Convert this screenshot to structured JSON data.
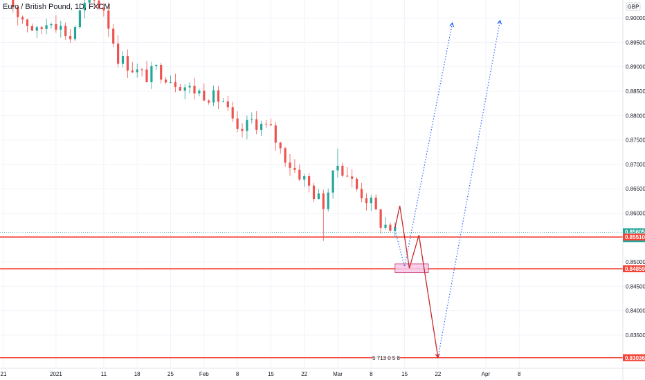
{
  "header": {
    "symbol_title": "Euro / British Pound, 1D, FXCM",
    "currency": "GBP"
  },
  "colors": {
    "up": "#26a69a",
    "down": "#ef5350",
    "level_line": "#f44336",
    "projection_solid": "#c62828",
    "projection_dotted": "#2962ff",
    "zone_fill": "#f8c8e8",
    "zone_border": "#c2185b",
    "last_price_bg": "#26a69a",
    "grid": "#f0f3fa"
  },
  "chart_data": {
    "type": "candlestick",
    "title": "Euro / British Pound, 1D, FXCM",
    "ylim": [
      0.8282,
      0.9037
    ],
    "y_ticks": [
      0.9,
      0.895,
      0.89,
      0.885,
      0.88,
      0.875,
      0.87,
      0.865,
      0.86,
      0.85,
      0.845,
      0.84,
      0.835
    ],
    "y_tick_labels": [
      "0.90000",
      "0.89500",
      "0.89000",
      "0.88500",
      "0.88000",
      "0.87500",
      "0.87000",
      "0.86500",
      "0.86000",
      "0.85000",
      "0.84500",
      "0.84000",
      "0.83500"
    ],
    "x_range": [
      "2020-12-21",
      "2021-04-15"
    ],
    "x_ticks": [
      {
        "date": "2020-12-21",
        "label": "21"
      },
      {
        "date": "2021-01-01",
        "label": "2021"
      },
      {
        "date": "2021-01-11",
        "label": "11"
      },
      {
        "date": "2021-01-18",
        "label": "18"
      },
      {
        "date": "2021-01-25",
        "label": "25"
      },
      {
        "date": "2021-02-01",
        "label": "Feb"
      },
      {
        "date": "2021-02-08",
        "label": "8"
      },
      {
        "date": "2021-02-15",
        "label": "15"
      },
      {
        "date": "2021-02-22",
        "label": "22"
      },
      {
        "date": "2021-03-01",
        "label": "Mar"
      },
      {
        "date": "2021-03-08",
        "label": "8"
      },
      {
        "date": "2021-03-15",
        "label": "15"
      },
      {
        "date": "2021-03-22",
        "label": "22"
      },
      {
        "date": "2021-04-01",
        "label": "Apr"
      },
      {
        "date": "2021-04-08",
        "label": "8"
      }
    ],
    "price_anchors": [
      [
        "2020-12-21",
        0.906
      ],
      [
        "2020-12-24",
        0.901
      ],
      [
        "2020-12-28",
        0.897
      ],
      [
        "2020-12-31",
        0.9
      ],
      [
        "2021-01-04",
        0.896
      ],
      [
        "2021-01-06",
        0.901
      ],
      [
        "2021-01-08",
        0.904
      ],
      [
        "2021-01-11",
        0.902
      ],
      [
        "2021-01-14",
        0.892
      ],
      [
        "2021-01-18",
        0.889
      ],
      [
        "2021-01-20",
        0.888
      ],
      [
        "2021-01-22",
        0.8895
      ],
      [
        "2021-01-26",
        0.887
      ],
      [
        "2021-01-29",
        0.8855
      ],
      [
        "2021-02-01",
        0.8845
      ],
      [
        "2021-02-05",
        0.883
      ],
      [
        "2021-02-08",
        0.876
      ],
      [
        "2021-02-11",
        0.879
      ],
      [
        "2021-02-15",
        0.877
      ],
      [
        "2021-02-17",
        0.873
      ],
      [
        "2021-02-19",
        0.87
      ],
      [
        "2021-02-22",
        0.867
      ],
      [
        "2021-02-24",
        0.864
      ],
      [
        "2021-02-26",
        0.862
      ],
      [
        "2021-03-01",
        0.87
      ],
      [
        "2021-03-03",
        0.868
      ],
      [
        "2021-03-05",
        0.865
      ],
      [
        "2021-03-08",
        0.862
      ],
      [
        "2021-03-10",
        0.858
      ],
      [
        "2021-03-12",
        0.857
      ],
      [
        "2021-03-13",
        0.85605
      ]
    ],
    "range_extremes": [
      {
        "date": "2021-02-26",
        "low": 0.8543
      },
      {
        "date": "2021-03-01",
        "high": 0.8732
      }
    ],
    "horizontal_levels": [
      0.8551,
      0.84859,
      0.83036
    ],
    "price_tags": [
      {
        "value": 0.85605,
        "label": "0.85605",
        "sub": "36:41",
        "kind": "last"
      },
      {
        "value": 0.8551,
        "label": "0.85510",
        "kind": "level"
      },
      {
        "value": 0.84859,
        "label": "0.84859",
        "kind": "level"
      },
      {
        "value": 0.83036,
        "label": "0.83036",
        "kind": "level"
      }
    ],
    "zone": {
      "from": "2021-03-13",
      "to": "2021-03-20",
      "top": 0.8496,
      "bottom": 0.8478
    },
    "projection_solid": [
      [
        "2021-03-13",
        0.857
      ],
      [
        "2021-03-14",
        0.8615
      ],
      [
        "2021-03-16",
        0.8487
      ],
      [
        "2021-03-18",
        0.8555
      ],
      [
        "2021-03-22",
        0.8304
      ]
    ],
    "projection_dotted_1": [
      [
        "2021-03-13",
        0.8565
      ],
      [
        "2021-03-15",
        0.849
      ],
      [
        "2021-03-25",
        0.899
      ]
    ],
    "projection_dotted_2": [
      [
        "2021-03-22",
        0.8304
      ],
      [
        "2021-04-04",
        0.8995
      ]
    ],
    "bottom_badges": "5 713 0 5 8"
  }
}
